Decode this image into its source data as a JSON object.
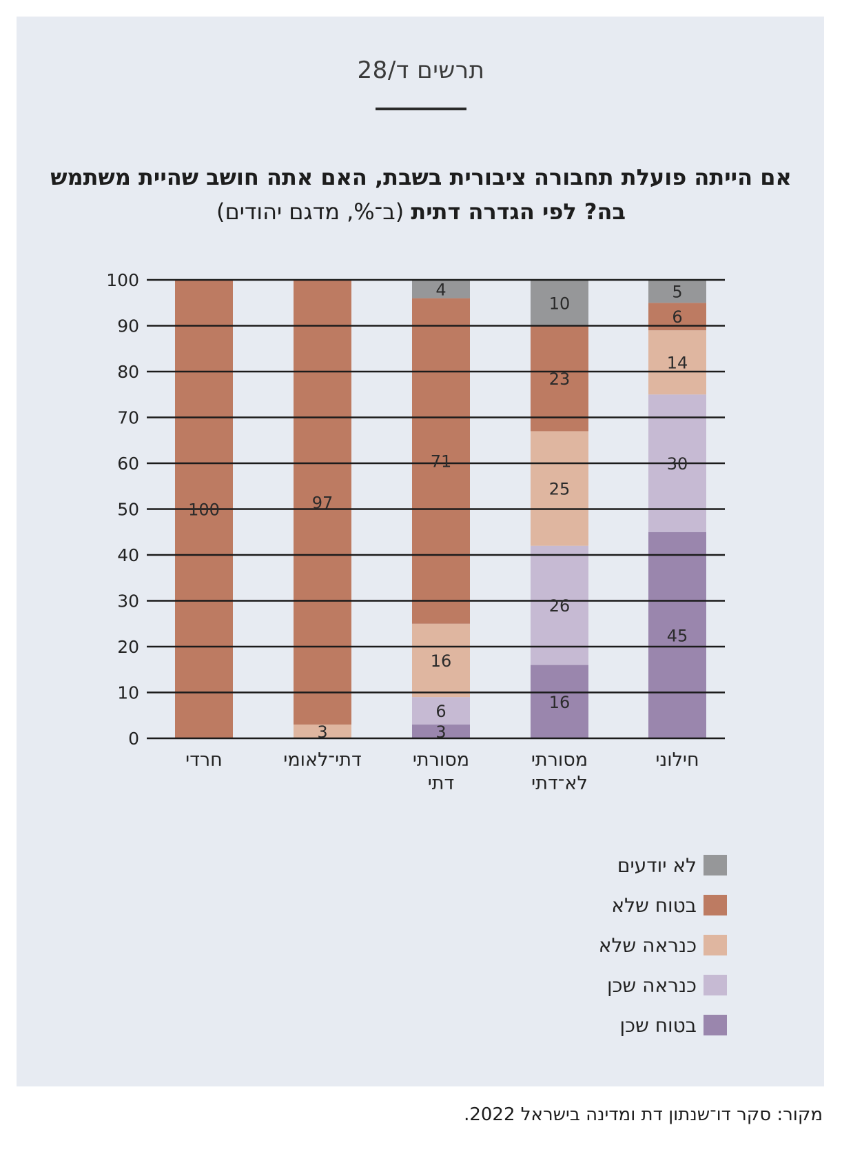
{
  "figure_label": "תרשים ד/28",
  "title_bold": "אם הייתה פועלת תחבורה ציבורית בשבת, האם אתה חושב שהיית משתמש בה? לפי הגדרה דתית",
  "title_light": "(ב־%, מדגם יהודים)",
  "source": "מקור: סקר דו־שנתון דת ומדינה בישראל 2022.",
  "chart_data": {
    "type": "bar",
    "stacked": true,
    "title": "אם הייתה פועלת תחבורה ציבורית בשבת, האם אתה חושב שהיית משתמש בה? לפי הגדרה דתית (ב־%, מדגם יהודים)",
    "xlabel": "",
    "ylabel": "",
    "ylim": [
      0,
      100
    ],
    "yticks": [
      0,
      10,
      20,
      30,
      40,
      50,
      60,
      70,
      80,
      90,
      100
    ],
    "grid": true,
    "legend_placement": "bottom-right",
    "categories": [
      [
        "חרדי"
      ],
      [
        "דתי־לאומי"
      ],
      [
        "מסורתי",
        "דתי"
      ],
      [
        "מסורתי",
        "לא־דתי"
      ],
      [
        "חילוני"
      ]
    ],
    "series": [
      {
        "name": "בטוח שכן",
        "color": "#9a86ad",
        "values": [
          0,
          0,
          3,
          16,
          45
        ]
      },
      {
        "name": "כנראה שכן",
        "color": "#c6bad3",
        "values": [
          0,
          0,
          6,
          26,
          30
        ]
      },
      {
        "name": "כנראה שלא",
        "color": "#dfb6a0",
        "values": [
          0,
          3,
          16,
          25,
          14
        ]
      },
      {
        "name": "בטוח שלא",
        "color": "#bd7b62",
        "values": [
          100,
          97,
          71,
          23,
          6
        ]
      },
      {
        "name": "לא יודעים",
        "color": "#969799",
        "values": [
          0,
          0,
          4,
          10,
          5
        ]
      }
    ]
  }
}
